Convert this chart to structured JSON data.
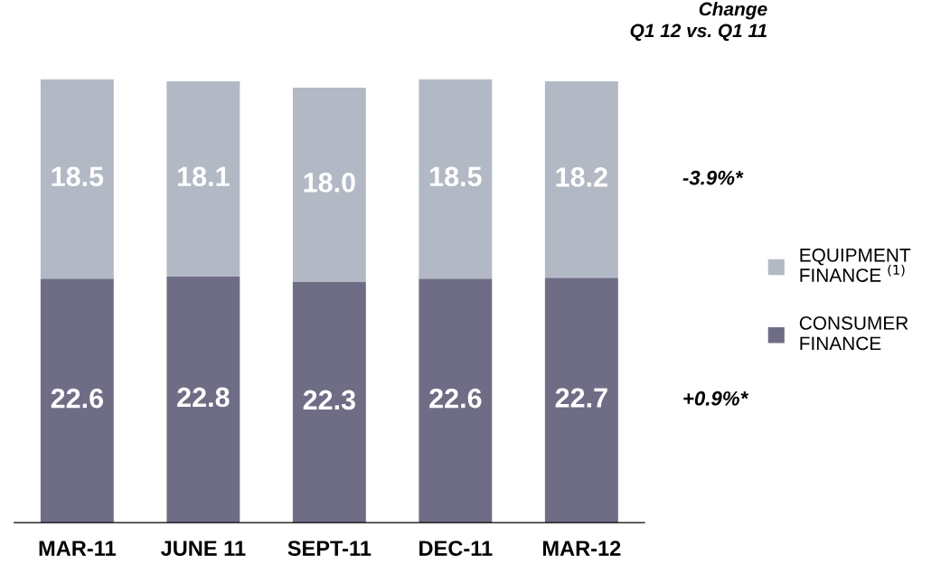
{
  "chart_data": {
    "type": "bar",
    "stacked": true,
    "legend": "right",
    "grid": false,
    "categories": [
      "MAR-11",
      "JUNE 11",
      "SEPT-11",
      "DEC-11",
      "MAR-12"
    ],
    "series": [
      {
        "name": "CONSUMER FINANCE",
        "color": "#6e6d85",
        "values": [
          22.6,
          22.8,
          22.3,
          22.6,
          22.7
        ],
        "value_labels": [
          "22.6",
          "22.8",
          "22.3",
          "22.6",
          "22.7"
        ]
      },
      {
        "name": "EQUIPMENT FINANCE $^{(1)}$",
        "color": "#b3b9c4",
        "values": [
          18.5,
          18.1,
          18.0,
          18.5,
          18.2
        ],
        "value_labels": [
          "18.5",
          "18.1",
          "18.0",
          "18.5",
          "18.2"
        ]
      }
    ],
    "annotations": [
      "Change\nQ1 12 vs. Q1 11",
      "-3.9%*",
      "+0.9%*"
    ]
  }
}
